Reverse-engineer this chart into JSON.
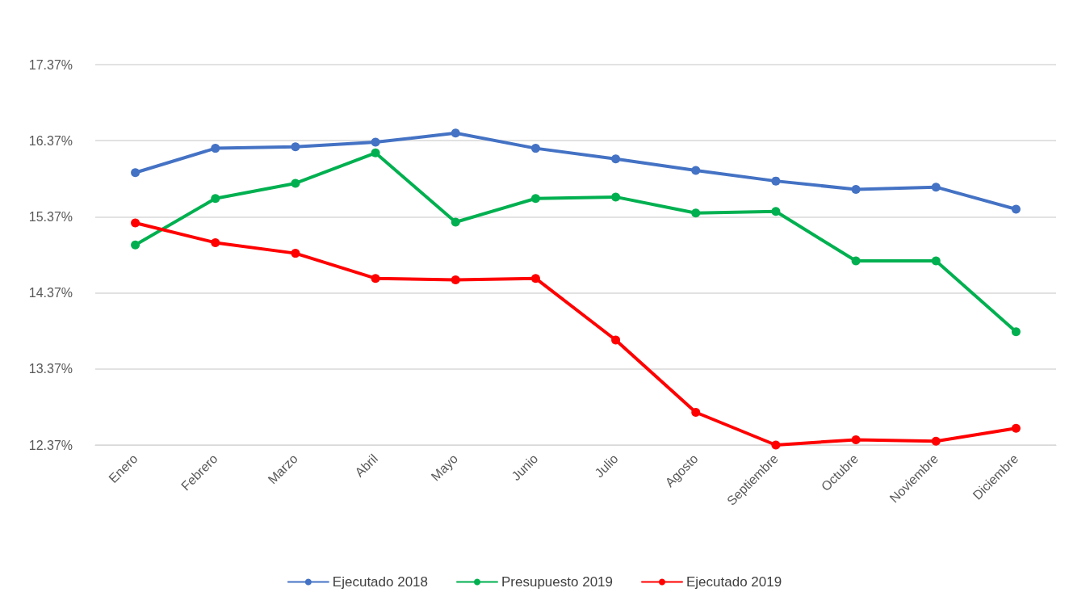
{
  "chart_data": {
    "type": "line",
    "categories": [
      "Enero",
      "Febrero",
      "Marzo",
      "Abril",
      "Mayo",
      "Junio",
      "Julio",
      "Agosto",
      "Septiembre",
      "Octubre",
      "Noviembre",
      "Diciembre"
    ],
    "series": [
      {
        "name": "Ejecutado 2018",
        "color": "#4472c4",
        "values": [
          15.95,
          16.27,
          16.29,
          16.35,
          16.47,
          16.27,
          16.13,
          15.98,
          15.84,
          15.73,
          15.76,
          15.47
        ]
      },
      {
        "name": "Presupuesto 2019",
        "color": "#00b050",
        "values": [
          15.0,
          15.61,
          15.81,
          16.21,
          15.3,
          15.61,
          15.63,
          15.42,
          15.44,
          14.79,
          14.79,
          13.86
        ]
      },
      {
        "name": "Ejecutado 2019",
        "color": "#ff0000",
        "values": [
          15.29,
          15.03,
          14.89,
          14.56,
          14.54,
          14.56,
          13.75,
          12.8,
          12.37,
          12.44,
          12.42,
          12.59
        ]
      }
    ],
    "ylim": [
      12.37,
      17.37
    ],
    "yticks": [
      {
        "value": 12.37,
        "label": "12.37%"
      },
      {
        "value": 13.37,
        "label": "13.37%"
      },
      {
        "value": 14.37,
        "label": "14.37%"
      },
      {
        "value": 15.37,
        "label": "15.37%"
      },
      {
        "value": 16.37,
        "label": "16.37%"
      },
      {
        "value": 17.37,
        "label": "17.37%"
      }
    ],
    "grid": "y",
    "legend": "bottom",
    "marker": "circle",
    "line_style": "solid"
  }
}
